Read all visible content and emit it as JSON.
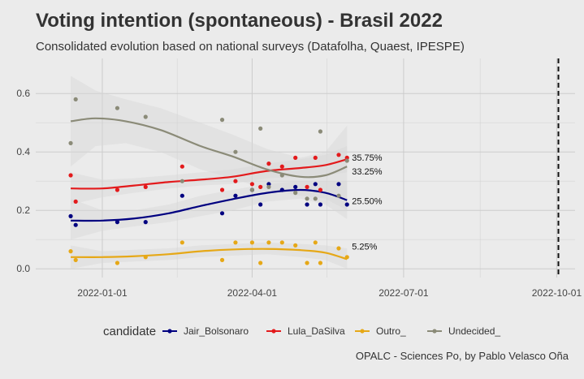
{
  "chart_data": {
    "type": "scatter",
    "title": "Voting intention (spontaneous) - Brasil 2022",
    "subtitle": "Consolidated evolution based on national surveys (Datafolha, Quaest, IPESPE)",
    "caption": "OPALC - Sciences Po, by Pablo Velasco Oña",
    "xlabel": "",
    "ylabel": "",
    "xlim": [
      "2021-11-22",
      "2022-10-12"
    ],
    "ylim": [
      -0.03,
      0.72
    ],
    "x_ticks": [
      "2022-01-01",
      "2022-04-01",
      "2022-07-01",
      "2022-10-01"
    ],
    "y_ticks": [
      0.0,
      0.2,
      0.4,
      0.6
    ],
    "y_tick_labels": [
      "0.0",
      "0.2",
      "0.4",
      "0.6"
    ],
    "grid": true,
    "election_line_date": "2022-10-02",
    "legend": {
      "title": "candidate",
      "position": "bottom"
    },
    "series": [
      {
        "name": "Jair_Bolsonaro",
        "color": "#000080",
        "end_label": "25.50%",
        "points": [
          [
            "2021-12-13",
            0.18
          ],
          [
            "2021-12-16",
            0.15
          ],
          [
            "2022-01-10",
            0.16
          ],
          [
            "2022-01-27",
            0.16
          ],
          [
            "2022-02-18",
            0.25
          ],
          [
            "2022-03-14",
            0.19
          ],
          [
            "2022-03-22",
            0.25
          ],
          [
            "2022-04-01",
            0.27
          ],
          [
            "2022-04-06",
            0.22
          ],
          [
            "2022-04-11",
            0.29
          ],
          [
            "2022-04-19",
            0.27
          ],
          [
            "2022-04-27",
            0.28
          ],
          [
            "2022-05-04",
            0.22
          ],
          [
            "2022-05-09",
            0.29
          ],
          [
            "2022-05-12",
            0.22
          ],
          [
            "2022-05-23",
            0.29
          ],
          [
            "2022-05-28",
            0.22
          ]
        ],
        "smooth": [
          [
            "2021-12-13",
            0.165
          ],
          [
            "2022-01-01",
            0.165
          ],
          [
            "2022-01-20",
            0.172
          ],
          [
            "2022-02-10",
            0.19
          ],
          [
            "2022-03-01",
            0.215
          ],
          [
            "2022-03-20",
            0.238
          ],
          [
            "2022-04-10",
            0.26
          ],
          [
            "2022-04-30",
            0.27
          ],
          [
            "2022-05-15",
            0.26
          ],
          [
            "2022-05-28",
            0.235
          ]
        ],
        "ribbon": [
          [
            "2021-12-13",
            0.1,
            0.24
          ],
          [
            "2022-01-01",
            0.13,
            0.2
          ],
          [
            "2022-01-20",
            0.145,
            0.2
          ],
          [
            "2022-02-10",
            0.16,
            0.22
          ],
          [
            "2022-03-01",
            0.18,
            0.25
          ],
          [
            "2022-03-20",
            0.2,
            0.27
          ],
          [
            "2022-04-10",
            0.23,
            0.29
          ],
          [
            "2022-04-30",
            0.24,
            0.3
          ],
          [
            "2022-05-15",
            0.22,
            0.3
          ],
          [
            "2022-05-28",
            0.17,
            0.3
          ]
        ]
      },
      {
        "name": "Lula_DaSilva",
        "color": "#e31a1c",
        "end_label": "35.75%",
        "points": [
          [
            "2021-12-13",
            0.32
          ],
          [
            "2021-12-16",
            0.23
          ],
          [
            "2022-01-10",
            0.27
          ],
          [
            "2022-01-27",
            0.28
          ],
          [
            "2022-02-18",
            0.35
          ],
          [
            "2022-03-14",
            0.27
          ],
          [
            "2022-03-22",
            0.3
          ],
          [
            "2022-04-01",
            0.29
          ],
          [
            "2022-04-06",
            0.28
          ],
          [
            "2022-04-11",
            0.36
          ],
          [
            "2022-04-19",
            0.35
          ],
          [
            "2022-04-27",
            0.38
          ],
          [
            "2022-05-04",
            0.28
          ],
          [
            "2022-05-09",
            0.38
          ],
          [
            "2022-05-12",
            0.27
          ],
          [
            "2022-05-23",
            0.39
          ],
          [
            "2022-05-28",
            0.38
          ]
        ],
        "smooth": [
          [
            "2021-12-13",
            0.275
          ],
          [
            "2022-01-01",
            0.275
          ],
          [
            "2022-01-20",
            0.285
          ],
          [
            "2022-02-10",
            0.297
          ],
          [
            "2022-03-01",
            0.305
          ],
          [
            "2022-03-20",
            0.315
          ],
          [
            "2022-04-10",
            0.335
          ],
          [
            "2022-04-30",
            0.345
          ],
          [
            "2022-05-15",
            0.355
          ],
          [
            "2022-05-28",
            0.375
          ]
        ],
        "ribbon": [
          [
            "2021-12-13",
            0.22,
            0.33
          ],
          [
            "2022-01-01",
            0.245,
            0.305
          ],
          [
            "2022-01-20",
            0.26,
            0.31
          ],
          [
            "2022-02-10",
            0.275,
            0.32
          ],
          [
            "2022-03-01",
            0.285,
            0.33
          ],
          [
            "2022-03-20",
            0.29,
            0.34
          ],
          [
            "2022-04-10",
            0.31,
            0.36
          ],
          [
            "2022-04-30",
            0.315,
            0.375
          ],
          [
            "2022-05-15",
            0.32,
            0.39
          ],
          [
            "2022-05-28",
            0.33,
            0.42
          ]
        ]
      },
      {
        "name": "Outro_",
        "color": "#e6a817",
        "end_label": "5.25%",
        "points": [
          [
            "2021-12-13",
            0.06
          ],
          [
            "2021-12-16",
            0.03
          ],
          [
            "2022-01-10",
            0.02
          ],
          [
            "2022-01-27",
            0.04
          ],
          [
            "2022-02-18",
            0.09
          ],
          [
            "2022-03-14",
            0.03
          ],
          [
            "2022-03-22",
            0.09
          ],
          [
            "2022-04-01",
            0.09
          ],
          [
            "2022-04-06",
            0.02
          ],
          [
            "2022-04-11",
            0.09
          ],
          [
            "2022-04-19",
            0.09
          ],
          [
            "2022-04-27",
            0.08
          ],
          [
            "2022-05-04",
            0.02
          ],
          [
            "2022-05-09",
            0.09
          ],
          [
            "2022-05-12",
            0.02
          ],
          [
            "2022-05-23",
            0.07
          ],
          [
            "2022-05-28",
            0.04
          ]
        ],
        "smooth": [
          [
            "2021-12-13",
            0.04
          ],
          [
            "2022-01-01",
            0.04
          ],
          [
            "2022-01-20",
            0.043
          ],
          [
            "2022-02-10",
            0.05
          ],
          [
            "2022-03-01",
            0.06
          ],
          [
            "2022-03-20",
            0.066
          ],
          [
            "2022-04-10",
            0.068
          ],
          [
            "2022-04-30",
            0.064
          ],
          [
            "2022-05-15",
            0.055
          ],
          [
            "2022-05-28",
            0.033
          ]
        ],
        "ribbon": [
          [
            "2021-12-13",
            0.0,
            0.08
          ],
          [
            "2022-01-01",
            0.02,
            0.06
          ],
          [
            "2022-01-20",
            0.025,
            0.065
          ],
          [
            "2022-02-10",
            0.03,
            0.07
          ],
          [
            "2022-03-01",
            0.04,
            0.08
          ],
          [
            "2022-03-20",
            0.045,
            0.085
          ],
          [
            "2022-04-10",
            0.05,
            0.09
          ],
          [
            "2022-04-30",
            0.04,
            0.085
          ],
          [
            "2022-05-15",
            0.03,
            0.08
          ],
          [
            "2022-05-28",
            0.0,
            0.07
          ]
        ]
      },
      {
        "name": "Undecided_",
        "color": "#8b8b78",
        "end_label": "33.25%",
        "points": [
          [
            "2021-12-13",
            0.43
          ],
          [
            "2021-12-16",
            0.58
          ],
          [
            "2022-01-10",
            0.55
          ],
          [
            "2022-01-27",
            0.52
          ],
          [
            "2022-02-18",
            0.3
          ],
          [
            "2022-03-14",
            0.51
          ],
          [
            "2022-03-22",
            0.4
          ],
          [
            "2022-04-01",
            0.27
          ],
          [
            "2022-04-06",
            0.48
          ],
          [
            "2022-04-11",
            0.28
          ],
          [
            "2022-04-19",
            0.32
          ],
          [
            "2022-04-27",
            0.26
          ],
          [
            "2022-05-04",
            0.24
          ],
          [
            "2022-05-09",
            0.24
          ],
          [
            "2022-05-12",
            0.47
          ],
          [
            "2022-05-23",
            0.25
          ],
          [
            "2022-05-28",
            0.37
          ]
        ],
        "smooth": [
          [
            "2021-12-13",
            0.505
          ],
          [
            "2021-12-28",
            0.515
          ],
          [
            "2022-01-15",
            0.505
          ],
          [
            "2022-02-05",
            0.475
          ],
          [
            "2022-03-01",
            0.42
          ],
          [
            "2022-03-20",
            0.385
          ],
          [
            "2022-04-10",
            0.34
          ],
          [
            "2022-04-30",
            0.315
          ],
          [
            "2022-05-15",
            0.32
          ],
          [
            "2022-05-28",
            0.35
          ]
        ],
        "ribbon": [
          [
            "2021-12-13",
            0.35,
            0.66
          ],
          [
            "2021-12-28",
            0.42,
            0.61
          ],
          [
            "2022-01-15",
            0.43,
            0.58
          ],
          [
            "2022-02-05",
            0.4,
            0.55
          ],
          [
            "2022-03-01",
            0.34,
            0.5
          ],
          [
            "2022-03-20",
            0.31,
            0.46
          ],
          [
            "2022-04-10",
            0.27,
            0.41
          ],
          [
            "2022-04-30",
            0.25,
            0.38
          ],
          [
            "2022-05-15",
            0.24,
            0.4
          ],
          [
            "2022-05-28",
            0.2,
            0.49
          ]
        ]
      }
    ]
  }
}
